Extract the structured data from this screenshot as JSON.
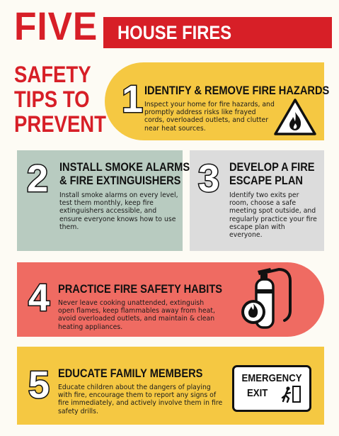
{
  "header": {
    "five": "FIVE",
    "banner": "HOUSE FIRES",
    "subtitle_lines": [
      "SAFETY",
      "TIPS TO",
      "PREVENT"
    ]
  },
  "tips": [
    {
      "number": "1",
      "title": "IDENTIFY & REMOVE FIRE HAZARDS",
      "body": "Inspect your home for fire hazards, and promptly address risks like frayed cords, overloaded outlets, and clutter near heat sources.",
      "icon": "fire-hazard-warning-icon"
    },
    {
      "number": "2",
      "title_lines": [
        "INSTALL SMOKE ALARMS",
        "& FIRE EXTINGUISHERS"
      ],
      "body": "Install smoke alarms on every level, test them monthly, keep fire extinguishers accessible, and ensure everyone knows how to use them."
    },
    {
      "number": "3",
      "title_lines": [
        "DEVELOP A FIRE",
        "ESCAPE PLAN"
      ],
      "body": "Identify two exits per room, choose a safe meeting spot outside, and regularly practice your fire escape plan with everyone."
    },
    {
      "number": "4",
      "title": "PRACTICE FIRE SAFETY HABITS",
      "body": "Never leave cooking unattended, extinguish open flames, keep flammables away from heat, avoid overloaded outlets, and maintain & clean heating appliances.",
      "icon": "fire-extinguisher-icon"
    },
    {
      "number": "5",
      "title": "EDUCATE FAMILY MEMBERS",
      "body": "Educate children about the dangers of playing with fire, encourage them to report any signs of fire immediately, and actively involve them in fire safety drills.",
      "icon": "emergency-exit-sign-icon",
      "sign_lines": [
        "EMERGENCY",
        "EXIT"
      ]
    }
  ],
  "colors": {
    "red": "#d71f27",
    "yellow": "#f5c842",
    "sage": "#b8cbc0",
    "gray": "#dcdcdc",
    "coral": "#ef6b62"
  }
}
